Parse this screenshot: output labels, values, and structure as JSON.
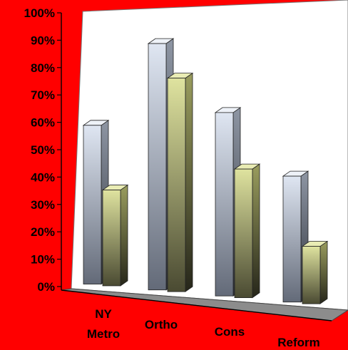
{
  "chart_data": {
    "type": "bar",
    "categories": [
      "NY Metro",
      "Ortho",
      "Cons",
      "Reform"
    ],
    "category_lines": [
      [
        "NY",
        "Metro"
      ],
      [
        "Ortho"
      ],
      [
        "Cons"
      ],
      [
        "Reform"
      ]
    ],
    "series": [
      {
        "values": [
          58,
          90,
          67,
          46
        ]
      },
      {
        "values": [
          35,
          78,
          47,
          21
        ]
      }
    ],
    "ylim": [
      0,
      100
    ],
    "yticks": [
      "0%",
      "10%",
      "20%",
      "30%",
      "40%",
      "50%",
      "60%",
      "70%",
      "80%",
      "90%",
      "100%"
    ],
    "legend": "none",
    "grid": false,
    "colors": {
      "background": "#ff0000",
      "wall": "#ffffff",
      "floor": "#8c8c8c",
      "series": [
        "#c9d3e3",
        "#c8cc86"
      ]
    }
  }
}
